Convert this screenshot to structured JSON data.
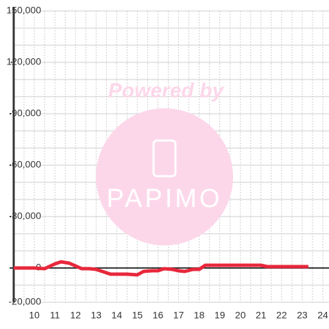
{
  "chart_data": {
    "type": "line",
    "watermark": {
      "top": "Powered by",
      "logo": "PAPIMO"
    },
    "x": [
      9,
      10,
      10.5,
      11,
      11.3,
      11.7,
      12,
      12.3,
      12.7,
      13,
      13.3,
      13.7,
      14,
      14.5,
      15,
      15.3,
      15.7,
      16,
      16.3,
      16.7,
      17,
      17.3,
      17.7,
      18,
      18.3,
      19,
      20,
      21,
      21.3,
      22,
      23.3
    ],
    "series": [
      {
        "color": "#e8283c",
        "values": [
          0,
          0,
          -400,
          2400,
          3600,
          2800,
          1200,
          -400,
          -400,
          -800,
          -2000,
          -3600,
          -3600,
          -3600,
          -4000,
          -2000,
          -1600,
          -1600,
          -400,
          -800,
          -1600,
          -2000,
          -800,
          -800,
          1600,
          1600,
          1600,
          1600,
          800,
          800,
          800
        ]
      }
    ],
    "xlim": [
      9,
      24.3
    ],
    "xticks": [
      10,
      11,
      12,
      13,
      14,
      15,
      16,
      17,
      18,
      19,
      20,
      21,
      22,
      23,
      24
    ],
    "ylim": [
      -20000,
      150000
    ],
    "yticks": [
      {
        "value": -20000,
        "label": "-20,000"
      },
      0,
      {
        "value": 30000,
        "label": "30,000"
      },
      {
        "value": 60000,
        "label": "60,000"
      },
      {
        "value": 90000,
        "label": "90,000"
      },
      {
        "value": 120000,
        "label": "120,000"
      },
      {
        "value": 150000,
        "label": "150,000"
      }
    ],
    "ygrid": [
      -10000,
      10000,
      20000,
      40000,
      50000,
      70000,
      80000,
      100000,
      110000,
      130000,
      140000
    ],
    "xgrid": [
      9.5,
      10.5,
      11.5,
      12.5,
      13.5,
      14.5,
      15.5,
      16.5,
      17.5,
      18.5,
      19.5,
      20.5,
      21.5,
      22.5,
      23.5
    ],
    "grid": true
  }
}
